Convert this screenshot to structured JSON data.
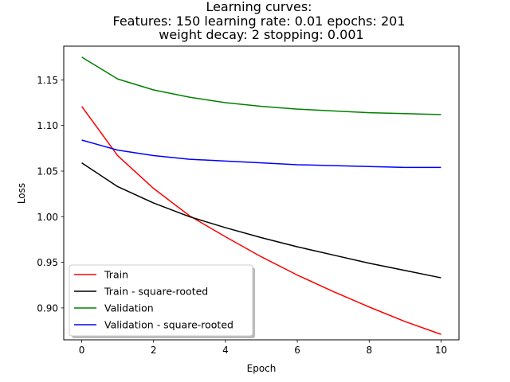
{
  "chart_data": {
    "type": "line",
    "title_lines": [
      "Learning curves:",
      "Features: 150 learning rate: 0.01 epochs: 201",
      "weight decay: 2 stopping: 0.001"
    ],
    "xlabel": "Epoch",
    "ylabel": "Loss",
    "x": [
      0,
      1,
      2,
      3,
      4,
      5,
      6,
      7,
      8,
      9,
      10
    ],
    "xlim": [
      -0.5,
      10.5
    ],
    "ylim": [
      0.865,
      1.187
    ],
    "xticks": [
      0,
      2,
      4,
      6,
      8,
      10
    ],
    "yticks": [
      0.9,
      0.95,
      1.0,
      1.05,
      1.1,
      1.15
    ],
    "xtick_labels": [
      "0",
      "2",
      "4",
      "6",
      "8",
      "10"
    ],
    "ytick_labels": [
      "0.90",
      "0.95",
      "1.00",
      "1.05",
      "1.10",
      "1.15"
    ],
    "grid": false,
    "legend_position": "lower-left",
    "series": [
      {
        "name": "Train",
        "color": "#ff0000",
        "values": [
          1.121,
          1.067,
          1.031,
          1.001,
          0.978,
          0.956,
          0.936,
          0.918,
          0.901,
          0.885,
          0.871
        ]
      },
      {
        "name": "Train - square-rooted",
        "color": "#000000",
        "values": [
          1.059,
          1.033,
          1.015,
          1.0,
          0.988,
          0.977,
          0.967,
          0.958,
          0.949,
          0.941,
          0.933
        ]
      },
      {
        "name": "Validation",
        "color": "#008000",
        "values": [
          1.175,
          1.151,
          1.139,
          1.131,
          1.125,
          1.121,
          1.118,
          1.116,
          1.114,
          1.113,
          1.112
        ]
      },
      {
        "name": "Validation - square-rooted",
        "color": "#0000ff",
        "values": [
          1.084,
          1.073,
          1.067,
          1.063,
          1.061,
          1.059,
          1.057,
          1.056,
          1.055,
          1.054,
          1.054
        ]
      }
    ]
  }
}
